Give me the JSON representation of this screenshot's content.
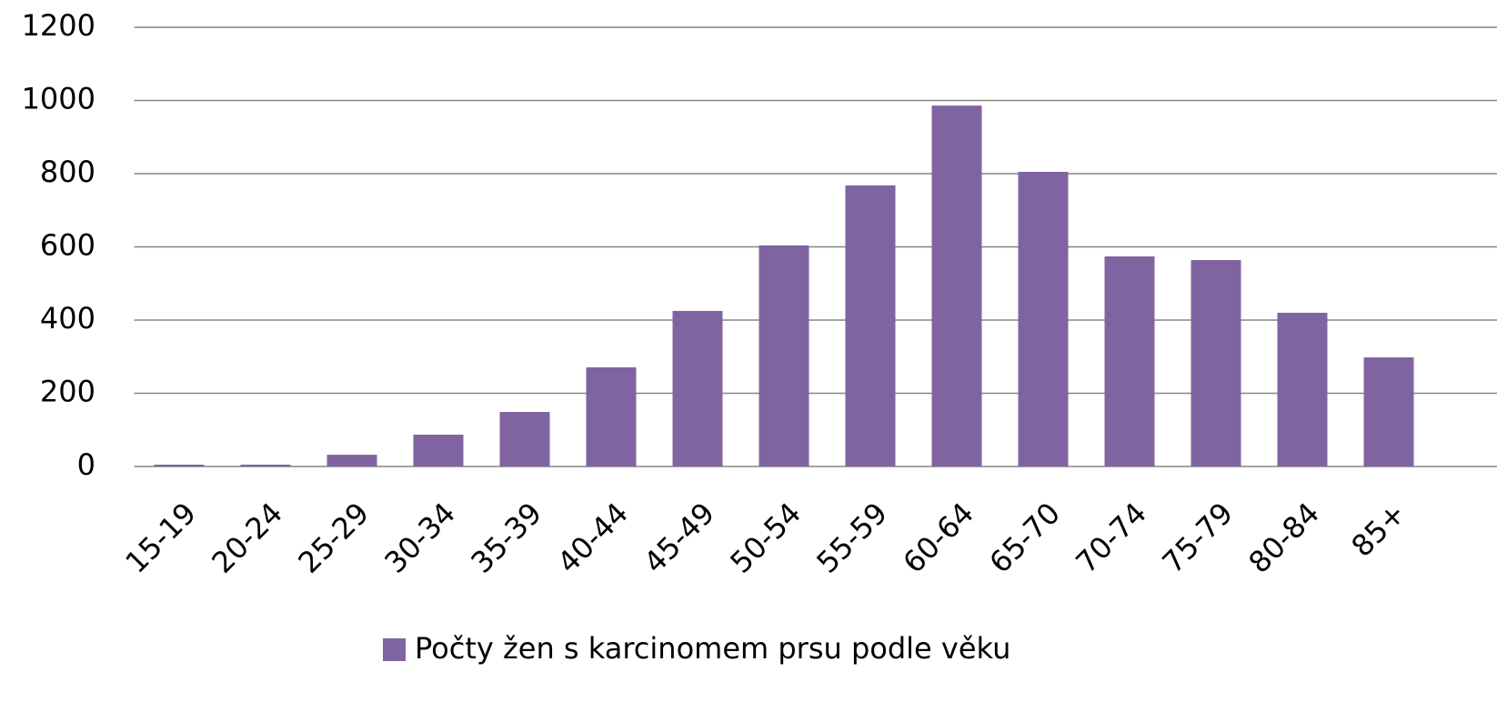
{
  "chart_data": {
    "type": "bar",
    "categories": [
      "15-19",
      "20-24",
      "25-29",
      "30-34",
      "35-39",
      "40-44",
      "45-49",
      "50-54",
      "55-59",
      "60-64",
      "65-70",
      "70-74",
      "75-79",
      "80-84",
      "85+"
    ],
    "series": [
      {
        "name": "Počty žen s karcinomem prsu podle věku",
        "color": "#8064a2",
        "values": [
          5,
          5,
          32,
          87,
          149,
          271,
          425,
          604,
          768,
          986,
          805,
          574,
          564,
          420,
          298
        ]
      }
    ],
    "ylim": [
      0,
      1200
    ],
    "yticks": [
      0,
      200,
      400,
      600,
      800,
      1000,
      1200
    ],
    "grid": true,
    "legend": "bottom"
  }
}
